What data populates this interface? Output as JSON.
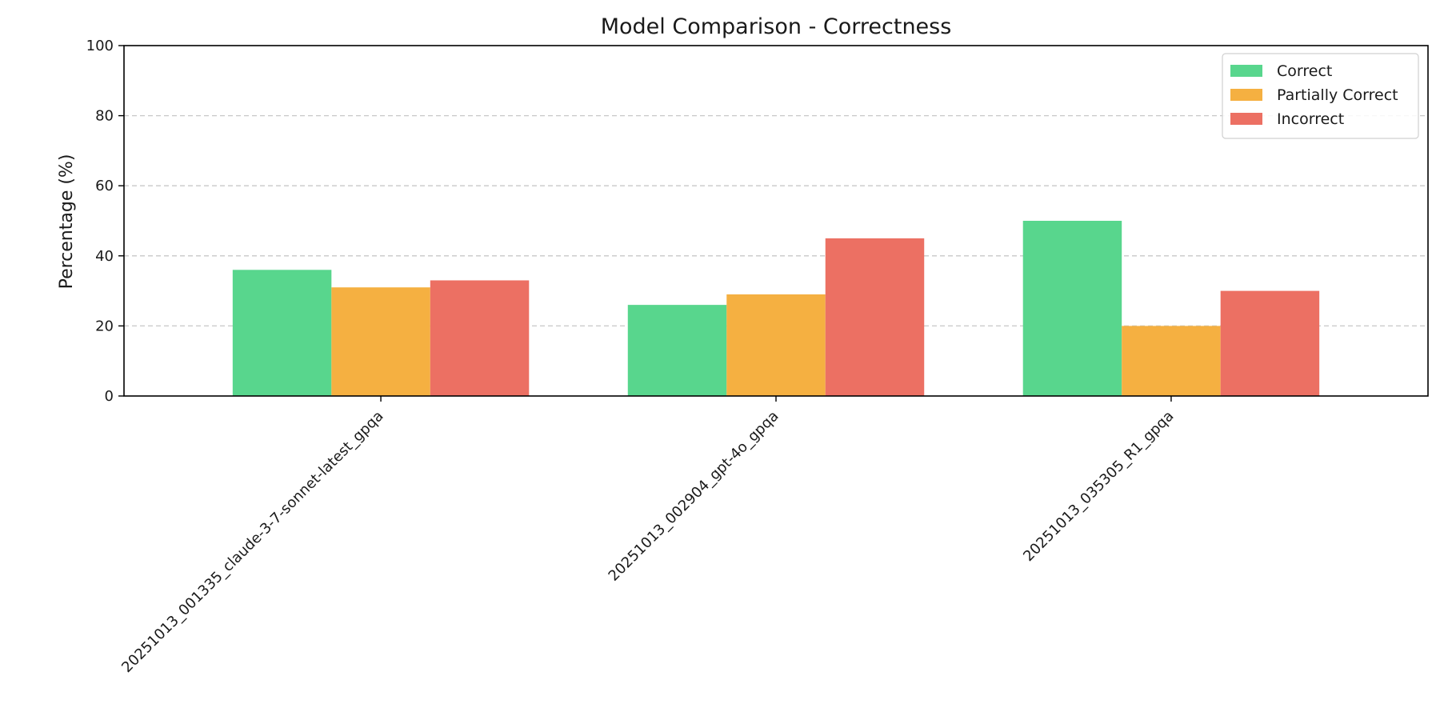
{
  "chart_data": {
    "type": "bar",
    "title": "Model Comparison - Correctness",
    "xlabel": "",
    "ylabel": "Percentage (%)",
    "ylim": [
      0,
      100
    ],
    "yticks": [
      0,
      20,
      40,
      60,
      80,
      100
    ],
    "grid": "y dashed",
    "legend_position": "top-right",
    "categories": [
      "20251013_001335_claude-3-7-sonnet-latest_gpqa",
      "20251013_002904_gpt-4o_gpqa",
      "20251013_035305_R1_gpqa"
    ],
    "series": [
      {
        "name": "Correct",
        "color": "#58d68d",
        "values": [
          36,
          26,
          50
        ]
      },
      {
        "name": "Partially Correct",
        "color": "#f5b041",
        "values": [
          31,
          29,
          20
        ]
      },
      {
        "name": "Incorrect",
        "color": "#ec7063",
        "values": [
          33,
          45,
          30
        ]
      }
    ]
  }
}
